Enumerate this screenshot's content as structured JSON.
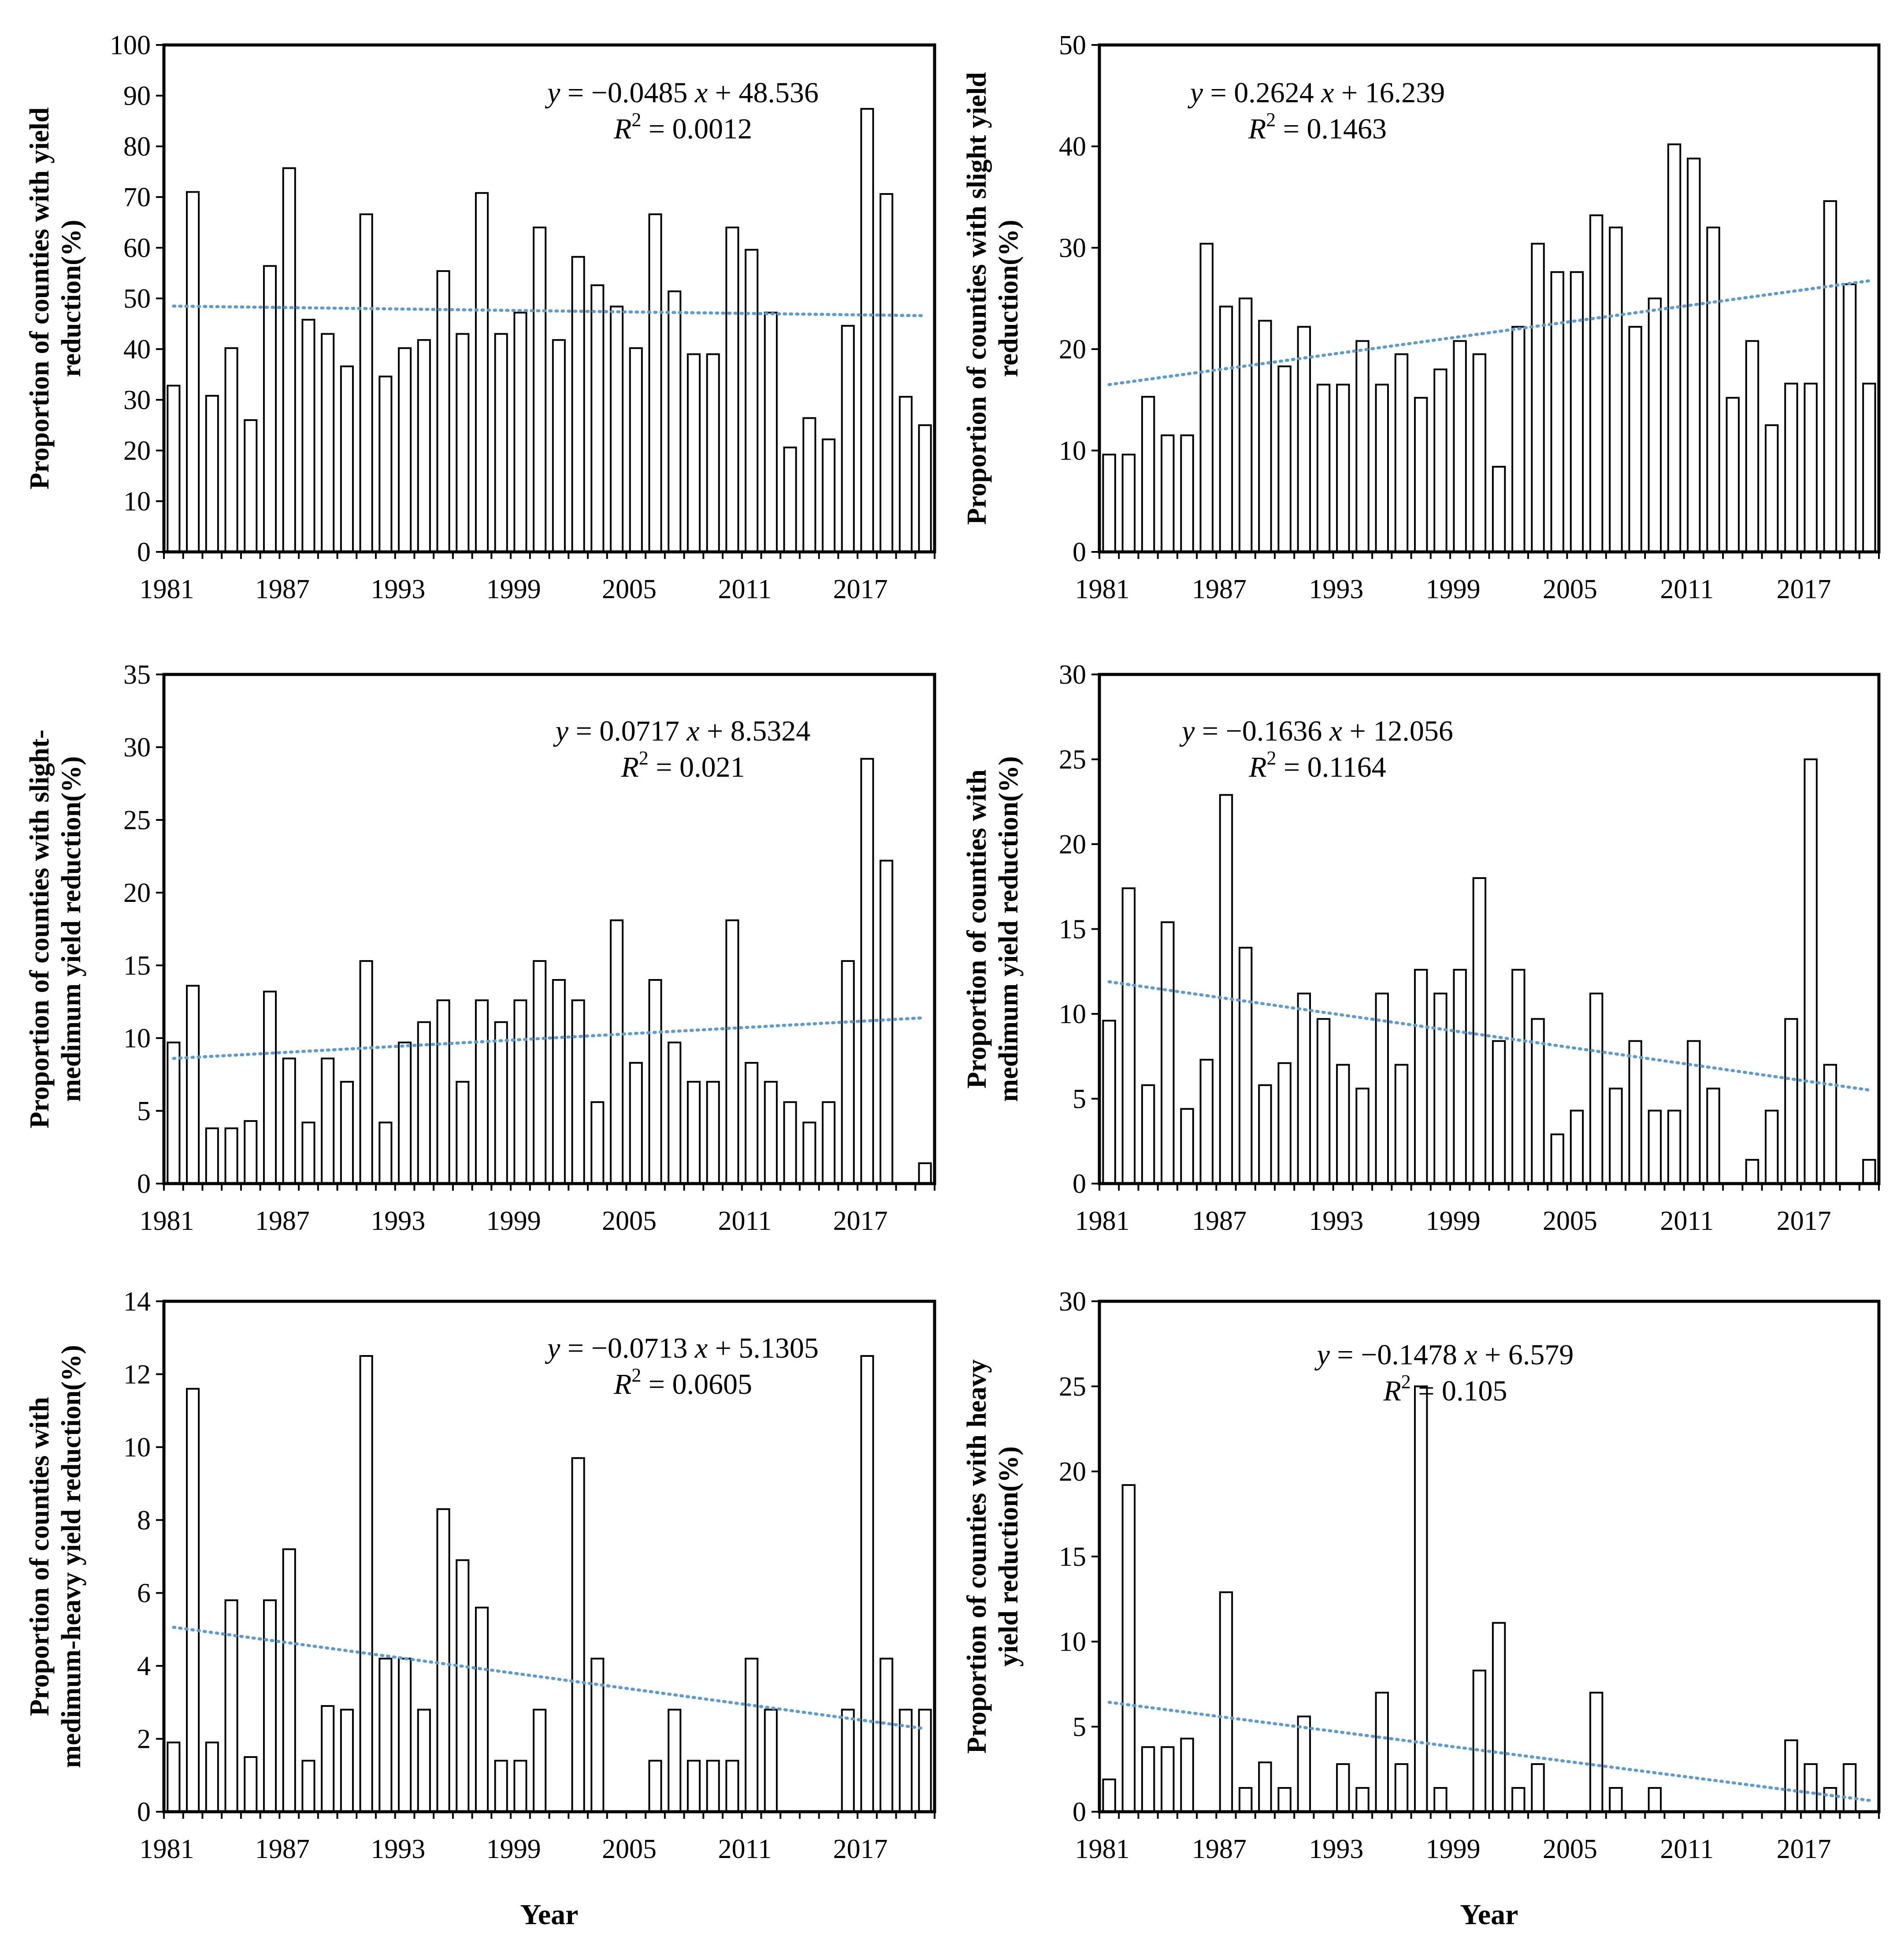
{
  "chart_data": [
    {
      "type": "bar",
      "ylabel": "Proportion of counties with yield reduction(%)",
      "ylabel_lines": [
        "Proportion of counties with yield",
        "reduction(%)"
      ],
      "xlabel": "",
      "ylim": [
        0,
        100
      ],
      "yticks": [
        0,
        10,
        20,
        30,
        40,
        50,
        60,
        70,
        80,
        90,
        100
      ],
      "xtick_labels": [
        "1981",
        "1987",
        "1993",
        "1999",
        "2005",
        "2011",
        "2017"
      ],
      "x_start": 1981,
      "values": [
        32.8,
        71.0,
        30.8,
        40.2,
        26.0,
        56.4,
        75.7,
        45.8,
        43.0,
        36.6,
        66.6,
        34.6,
        40.2,
        41.8,
        55.4,
        43.0,
        70.8,
        43.0,
        47.2,
        64.0,
        41.8,
        58.2,
        52.6,
        48.4,
        40.2,
        66.6,
        51.4,
        39.0,
        39.0,
        64.0,
        59.6,
        47.2,
        20.6,
        26.4,
        22.2,
        44.6,
        87.4,
        70.6,
        30.6,
        25.0
      ],
      "trend": {
        "slope": -0.0485,
        "intercept": 48.536
      },
      "equation": {
        "y": "y",
        "eq": "= −0.0485",
        "x": "x",
        "rest": "+ 48.536",
        "r": "R",
        "sup": "2",
        "r_val": "= 0.0012"
      }
    },
    {
      "type": "bar",
      "ylabel": "Proportion of counties with slight yield reduction(%)",
      "ylabel_lines": [
        "Proportion of counties with slight yield",
        "reduction(%)"
      ],
      "xlabel": "",
      "ylim": [
        0,
        50
      ],
      "yticks": [
        0,
        10,
        20,
        30,
        40,
        50
      ],
      "xtick_labels": [
        "1981",
        "1987",
        "1993",
        "1999",
        "2005",
        "2011",
        "2017"
      ],
      "x_start": 1981,
      "values": [
        9.6,
        9.6,
        15.3,
        11.5,
        11.5,
        30.4,
        24.2,
        25.0,
        22.8,
        18.3,
        22.2,
        16.5,
        16.5,
        20.8,
        16.5,
        19.5,
        15.2,
        18.0,
        20.8,
        19.5,
        8.4,
        22.2,
        30.4,
        27.6,
        27.6,
        33.2,
        32.0,
        22.2,
        25.0,
        40.2,
        38.8,
        32.0,
        15.2,
        20.8,
        12.5,
        16.6,
        16.6,
        34.6,
        26.4,
        16.6
      ],
      "trend": {
        "slope": 0.2624,
        "intercept": 16.239
      },
      "equation": {
        "y": "y",
        "eq": "= 0.2624",
        "x": "x",
        "rest": "+ 16.239",
        "r": "R",
        "sup": "2",
        "r_val": "= 0.1463"
      }
    },
    {
      "type": "bar",
      "ylabel": "Proportion of counties with slight-medimum yield reduction(%)",
      "ylabel_lines": [
        "Proportion of counties with slight-",
        "medimum yield reduction(%)"
      ],
      "xlabel": "",
      "ylim": [
        0,
        35
      ],
      "yticks": [
        0,
        5,
        10,
        15,
        20,
        25,
        30,
        35
      ],
      "xtick_labels": [
        "1981",
        "1987",
        "1993",
        "1999",
        "2005",
        "2011",
        "2017"
      ],
      "x_start": 1981,
      "values": [
        9.7,
        13.6,
        3.8,
        3.8,
        4.3,
        13.2,
        8.6,
        4.2,
        8.6,
        7.0,
        15.3,
        4.2,
        9.7,
        11.1,
        12.6,
        7.0,
        12.6,
        11.1,
        12.6,
        15.3,
        14.0,
        12.6,
        5.6,
        18.1,
        8.3,
        14.0,
        9.7,
        7.0,
        7.0,
        18.1,
        8.3,
        7.0,
        5.6,
        4.2,
        5.6,
        15.3,
        29.2,
        22.2,
        0,
        1.4
      ],
      "trend": {
        "slope": 0.0717,
        "intercept": 8.5324
      },
      "equation": {
        "y": "y",
        "eq": "= 0.0717",
        "x": "x",
        "rest": "+ 8.5324",
        "r": "R",
        "sup": "2",
        "r_val": "= 0.021"
      }
    },
    {
      "type": "bar",
      "ylabel": "Proportion of counties with medimum yield reduction(%)",
      "ylabel_lines": [
        "Proportion of counties with",
        "medimum yield reduction(%)"
      ],
      "xlabel": "",
      "ylim": [
        0,
        30
      ],
      "yticks": [
        0,
        5,
        10,
        15,
        20,
        25,
        30
      ],
      "xtick_labels": [
        "1981",
        "1987",
        "1993",
        "1999",
        "2005",
        "2011",
        "2017"
      ],
      "x_start": 1981,
      "values": [
        9.6,
        17.4,
        5.8,
        15.4,
        4.4,
        7.3,
        22.9,
        13.9,
        5.8,
        7.1,
        11.2,
        9.7,
        7.0,
        5.6,
        11.2,
        7.0,
        12.6,
        11.2,
        12.6,
        18.0,
        8.4,
        12.6,
        9.7,
        2.9,
        4.3,
        11.2,
        5.6,
        8.4,
        4.3,
        4.3,
        8.4,
        5.6,
        0,
        1.4,
        4.3,
        9.7,
        25.0,
        7.0,
        0,
        1.4
      ],
      "trend": {
        "slope": -0.1636,
        "intercept": 12.056
      },
      "equation": {
        "y": "y",
        "eq": "= −0.1636",
        "x": "x",
        "rest": "+ 12.056",
        "r": "R",
        "sup": "2",
        "r_val": "= 0.1164"
      }
    },
    {
      "type": "bar",
      "ylabel": "Proportion of counties with medimum-heavy yield reduction(%)",
      "ylabel_lines": [
        "Proportion of counties with",
        "medimum-heavy yield reduction(%)"
      ],
      "xlabel": "Year",
      "ylim": [
        0,
        14
      ],
      "yticks": [
        0,
        2,
        4,
        6,
        8,
        10,
        12,
        14
      ],
      "xtick_labels": [
        "1981",
        "1987",
        "1993",
        "1999",
        "2005",
        "2011",
        "2017"
      ],
      "x_start": 1981,
      "values": [
        1.9,
        11.6,
        1.9,
        5.8,
        1.5,
        5.8,
        7.2,
        1.4,
        2.9,
        2.8,
        12.5,
        4.2,
        4.2,
        2.8,
        8.3,
        6.9,
        5.6,
        1.4,
        1.4,
        2.8,
        0,
        9.7,
        4.2,
        0,
        0,
        1.4,
        2.8,
        1.4,
        1.4,
        1.4,
        4.2,
        2.8,
        0,
        0,
        0,
        2.8,
        12.5,
        4.2,
        2.8,
        2.8
      ],
      "trend": {
        "slope": -0.0713,
        "intercept": 5.1305
      },
      "equation": {
        "y": "y",
        "eq": "= −0.0713",
        "x": "x",
        "rest": "+ 5.1305",
        "r": "R",
        "sup": "2",
        "r_val": "= 0.0605"
      }
    },
    {
      "type": "bar",
      "ylabel": "Proportion of counties with heavy yield reduction(%)",
      "ylabel_lines": [
        "Proportion of counties with heavy",
        "yield reduction(%)"
      ],
      "xlabel": "Year",
      "ylim": [
        0,
        30
      ],
      "yticks": [
        0,
        5,
        10,
        15,
        20,
        25,
        30
      ],
      "xtick_labels": [
        "1981",
        "1987",
        "1993",
        "1999",
        "2005",
        "2011",
        "2017"
      ],
      "x_start": 1981,
      "values": [
        1.9,
        19.2,
        3.8,
        3.8,
        4.3,
        0,
        12.9,
        1.4,
        2.9,
        1.4,
        5.6,
        0,
        2.8,
        1.4,
        7.0,
        2.8,
        25.0,
        1.4,
        0,
        8.3,
        11.1,
        1.4,
        2.8,
        0,
        0,
        7.0,
        1.4,
        0,
        1.4,
        0,
        0,
        0,
        0,
        0,
        0,
        4.2,
        2.8,
        1.4,
        2.8,
        0
      ],
      "trend": {
        "slope": -0.1478,
        "intercept": 6.579
      },
      "equation": {
        "y": "y",
        "eq": "= −0.1478",
        "x": "x",
        "rest": "+ 6.579",
        "r": "R",
        "sup": "2",
        "r_val": "= 0.105"
      }
    }
  ]
}
